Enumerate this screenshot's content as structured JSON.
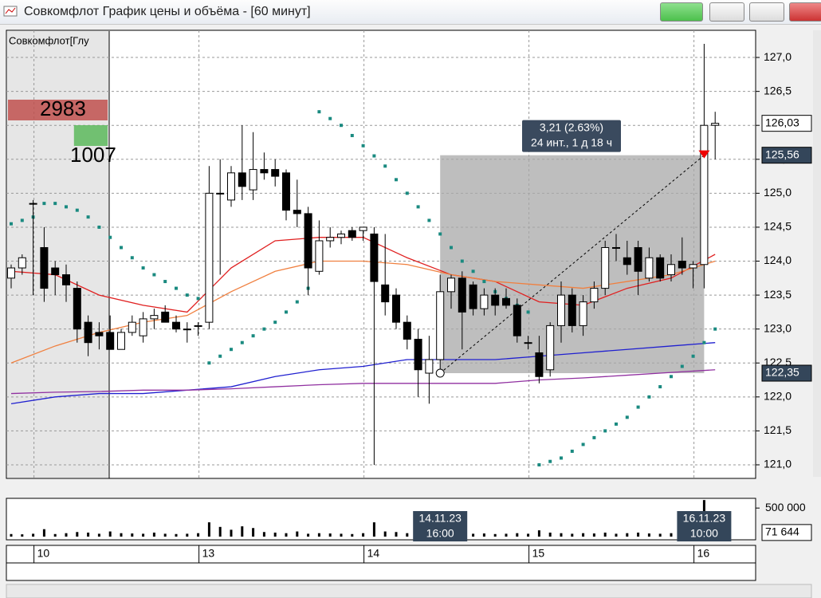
{
  "window": {
    "title": "Совкомфлот График цены и объёма - [60 минут]"
  },
  "chart_data": {
    "type": "candlestick",
    "legend_label": "Совкомфлот[Глу",
    "up_color": "#ffffff",
    "down_color": "#000000",
    "open": [
      123.75,
      123.9,
      124.85,
      124.2,
      123.9,
      123.8,
      123.6,
      123.1,
      122.95,
      122.95,
      122.7,
      122.95,
      122.9,
      123.15,
      123.25,
      123.1,
      123.0,
      123.05,
      123.1,
      125.0,
      124.9,
      125.3,
      125.05,
      125.35,
      125.35,
      125.3,
      124.75,
      124.7,
      123.85,
      124.3,
      124.35,
      124.45,
      124.45,
      124.4,
      123.65,
      123.5,
      123.1,
      122.85,
      122.35,
      122.55,
      123.55,
      123.75,
      123.65,
      123.3,
      123.5,
      123.45,
      123.35,
      122.8,
      122.65,
      122.4,
      123.05,
      123.5,
      123.05,
      123.4,
      123.6,
      124.2,
      124.05,
      124.2,
      123.75,
      124.05,
      123.8,
      124.0,
      123.9,
      123.95,
      126.0
    ],
    "high": [
      123.95,
      124.1,
      124.9,
      124.5,
      124.0,
      123.95,
      123.7,
      123.2,
      123.1,
      123.2,
      123.0,
      123.2,
      123.25,
      123.3,
      123.35,
      123.2,
      123.1,
      123.1,
      125.4,
      125.5,
      125.4,
      126.0,
      125.9,
      125.6,
      125.5,
      125.35,
      125.2,
      124.8,
      124.6,
      124.5,
      124.45,
      124.5,
      124.5,
      124.5,
      124.4,
      123.6,
      123.2,
      123.0,
      122.9,
      123.8,
      123.8,
      123.85,
      123.7,
      123.6,
      123.6,
      123.6,
      123.45,
      122.9,
      122.9,
      123.1,
      123.7,
      123.6,
      123.5,
      123.7,
      124.3,
      124.4,
      124.3,
      124.3,
      124.2,
      124.1,
      124.1,
      124.35,
      124.0,
      127.2,
      126.2
    ],
    "low": [
      123.6,
      123.8,
      123.5,
      123.4,
      123.5,
      123.4,
      122.8,
      122.6,
      122.7,
      122.7,
      122.7,
      122.9,
      122.8,
      123.0,
      123.1,
      122.95,
      122.8,
      122.9,
      123.0,
      123.8,
      124.8,
      124.9,
      124.9,
      125.2,
      125.1,
      124.6,
      124.5,
      123.5,
      123.8,
      124.2,
      124.25,
      124.3,
      124.3,
      121.0,
      123.2,
      123.0,
      122.7,
      122.0,
      121.9,
      122.3,
      123.3,
      122.7,
      123.2,
      123.2,
      123.2,
      123.3,
      122.8,
      122.7,
      122.2,
      122.3,
      122.8,
      122.95,
      122.9,
      123.3,
      123.5,
      124.0,
      123.8,
      123.5,
      123.7,
      123.7,
      123.7,
      123.8,
      123.6,
      123.6,
      125.5
    ],
    "close": [
      123.9,
      124.05,
      124.85,
      123.6,
      123.8,
      123.65,
      123.0,
      122.8,
      122.9,
      122.7,
      122.95,
      123.1,
      123.15,
      123.2,
      123.1,
      123.0,
      123.0,
      123.05,
      125.0,
      125.0,
      125.3,
      125.1,
      125.35,
      125.3,
      125.25,
      124.75,
      124.7,
      123.9,
      124.3,
      124.35,
      124.4,
      124.35,
      124.5,
      123.7,
      123.4,
      123.1,
      122.85,
      122.4,
      122.55,
      123.55,
      123.75,
      123.25,
      123.3,
      123.5,
      123.35,
      123.35,
      122.9,
      122.8,
      122.3,
      123.05,
      123.5,
      123.05,
      123.4,
      123.6,
      124.2,
      124.2,
      123.95,
      123.85,
      124.05,
      123.75,
      123.95,
      123.9,
      123.95,
      126.0,
      126.03
    ],
    "ylim": [
      120.8,
      127.4
    ],
    "yticks": [
      {
        "value": 121,
        "label": "121,0"
      },
      {
        "value": 121.5,
        "label": "121,5"
      },
      {
        "value": 122,
        "label": "122,0"
      },
      {
        "value": 122.5,
        "label": "122,5"
      },
      {
        "value": 123,
        "label": "123,0"
      },
      {
        "value": 123.5,
        "label": "123,5"
      },
      {
        "value": 124,
        "label": "124,0"
      },
      {
        "value": 124.5,
        "label": "124,5"
      },
      {
        "value": 125,
        "label": "125,0"
      },
      {
        "value": 125.5,
        "label": "125,5"
      },
      {
        "value": 126,
        "label": "126,0"
      },
      {
        "value": 126.5,
        "label": "126,5"
      },
      {
        "value": 127,
        "label": "127,0"
      }
    ],
    "grid": true,
    "indicator_x": [
      0,
      4,
      8,
      12,
      16,
      20,
      24,
      28,
      32,
      36,
      40,
      44,
      48,
      52,
      56,
      60,
      64
    ],
    "indicators": [
      {
        "color": "#e02020",
        "values": [
          123.85,
          123.8,
          123.5,
          123.35,
          123.25,
          123.9,
          124.3,
          124.35,
          124.35,
          124.05,
          123.8,
          123.7,
          123.4,
          123.35,
          123.6,
          123.75,
          124.1
        ]
      },
      {
        "color": "#f08040",
        "values": [
          122.5,
          122.75,
          122.95,
          123.1,
          123.2,
          123.55,
          123.85,
          124.0,
          124.0,
          123.95,
          123.8,
          123.7,
          123.65,
          123.6,
          123.7,
          123.8,
          124.0
        ]
      },
      {
        "color": "#2020d0",
        "values": [
          121.9,
          122.0,
          122.05,
          122.05,
          122.1,
          122.15,
          122.3,
          122.4,
          122.45,
          122.55,
          122.55,
          122.55,
          122.6,
          122.65,
          122.7,
          122.75,
          122.8
        ]
      },
      {
        "color": "#9030a0",
        "values": [
          122.05,
          122.07,
          122.08,
          122.1,
          122.1,
          122.12,
          122.15,
          122.18,
          122.2,
          122.2,
          122.2,
          122.2,
          122.25,
          122.28,
          122.32,
          122.36,
          122.4
        ]
      }
    ],
    "sar": {
      "color": "#1a8a80",
      "values": [
        124.55,
        124.6,
        124.65,
        124.85,
        124.85,
        124.8,
        124.75,
        124.65,
        124.5,
        124.35,
        124.2,
        124.05,
        123.9,
        123.8,
        123.7,
        123.6,
        123.5,
        123.45,
        122.5,
        122.6,
        122.7,
        122.8,
        122.9,
        123.0,
        123.1,
        123.25,
        123.4,
        123.6,
        126.2,
        126.1,
        126.0,
        125.85,
        125.7,
        125.55,
        125.4,
        125.2,
        125.0,
        124.8,
        124.6,
        124.4,
        124.2,
        124.0,
        123.85,
        123.7,
        123.55,
        123.45,
        123.35,
        123.25,
        121.0,
        121.05,
        121.1,
        121.2,
        121.3,
        121.4,
        121.5,
        121.6,
        121.7,
        121.85,
        122.0,
        122.15,
        122.3,
        122.45,
        122.6,
        122.8,
        123.0
      ]
    },
    "price_labels": [
      {
        "value": 126.03,
        "label": "126,03"
      },
      {
        "value": 125.56,
        "label": "125,56"
      },
      {
        "value": 122.35,
        "label": "122,35"
      }
    ],
    "measure": {
      "start_index": 39,
      "end_index": 63,
      "start": 122.35,
      "end": 125.56,
      "label": "3,21 (2.63%)",
      "sublabel": "24 инт., 1 д 18 ч",
      "start_date": "14.11.23",
      "start_time": "16:00",
      "end_date": "16.11.23",
      "end_time": "10:00"
    },
    "volume_profile": [
      {
        "value": 2983,
        "color": "#c0504d"
      },
      {
        "value": 1007,
        "color": "#5cb85c"
      }
    ],
    "days": [
      "10",
      "13",
      "14",
      "15",
      "16"
    ],
    "day_index": [
      2,
      17,
      32,
      47,
      62
    ],
    "volume": {
      "values": [
        45000,
        40000,
        50000,
        130000,
        45000,
        60000,
        80000,
        70000,
        50000,
        90000,
        60000,
        55000,
        50000,
        70000,
        50000,
        45000,
        50000,
        60000,
        250000,
        170000,
        120000,
        180000,
        150000,
        80000,
        70000,
        60000,
        90000,
        50000,
        60000,
        55000,
        50000,
        45000,
        60000,
        250000,
        90000,
        80000,
        60000,
        50000,
        60000,
        70000,
        50000,
        45000,
        50000,
        55000,
        45000,
        50000,
        60000,
        50000,
        110000,
        70000,
        60000,
        50000,
        60000,
        55000,
        70000,
        50000,
        60000,
        70000,
        55000,
        50000,
        60000,
        55000,
        60000,
        640000,
        71644
      ],
      "ylim": [
        0,
        670000
      ],
      "yticks": [
        {
          "value": 500000,
          "label": "500 000"
        }
      ],
      "last_label": {
        "value": 71644,
        "label": "71 644"
      }
    }
  }
}
